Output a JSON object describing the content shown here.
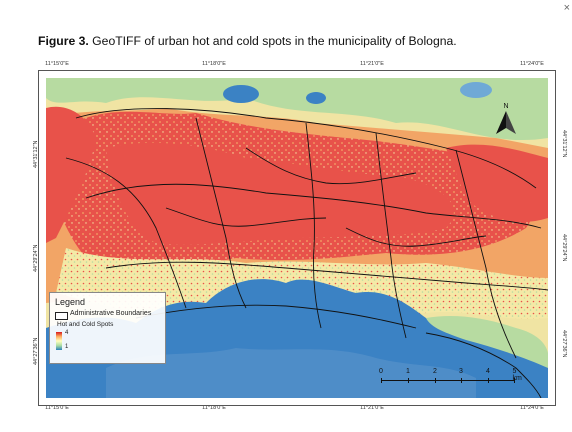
{
  "close_glyph": "×",
  "caption": {
    "label": "Figure 3.",
    "text": " GeoTIFF of urban hot and cold spots in the municipality of Bologna."
  },
  "graticule": {
    "longitudes": [
      "11°15'0\"E",
      "11°18'0\"E",
      "11°21'0\"E",
      "11°24'0\"E"
    ],
    "latitudes_left": [
      "44°31'12\"N",
      "44°29'24\"N",
      "44°27'36\"N"
    ],
    "latitudes_right": [
      "44°31'12\"N",
      "44°29'24\"N",
      "44°27'36\"N"
    ]
  },
  "map": {
    "north_label": "N",
    "colors": {
      "hot": "#e8524a",
      "warm": "#f2a566",
      "neutral": "#f4e9a6",
      "cool": "#b7dba1",
      "cold": "#3b82c4",
      "cold_light": "#6fa9d6"
    }
  },
  "legend": {
    "title": "Legend",
    "boundary_label": "Administrative Boundaries",
    "spots_label": "Hot and Cold Spots",
    "max_value": "4",
    "min_value": "1"
  },
  "scale_bar": {
    "labels": [
      "0",
      "1",
      "2",
      "3",
      "4",
      "5 km"
    ]
  }
}
